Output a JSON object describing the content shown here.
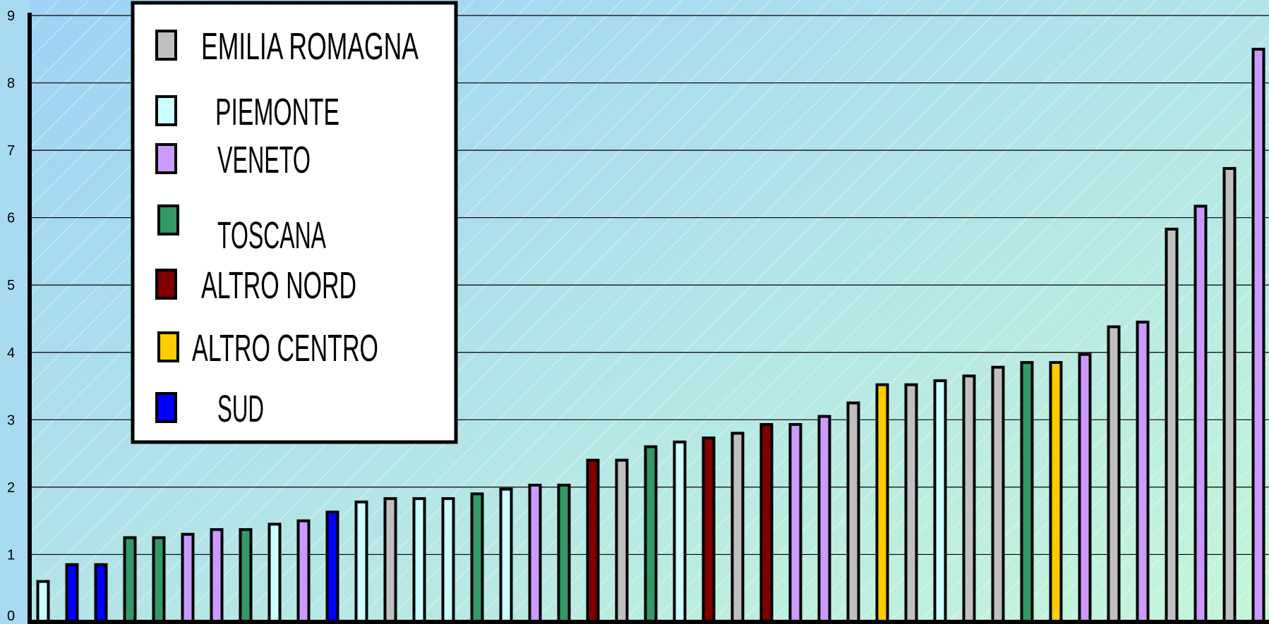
{
  "chart_data": {
    "type": "bar",
    "title": "",
    "xlabel": "",
    "ylabel": "",
    "ylim": [
      0,
      9
    ],
    "yticks": [
      0,
      1,
      2,
      3,
      4,
      5,
      6,
      7,
      8,
      9
    ],
    "grid": true,
    "legend_placement": "top-left",
    "legend": [
      {
        "key": "emilia",
        "label": "EMILIA ROMAGNA",
        "color": "#c0c0c0"
      },
      {
        "key": "piemonte",
        "label": "PIEMONTE",
        "color": "#ccffff"
      },
      {
        "key": "veneto",
        "label": "VENETO",
        "color": "#cc99ff"
      },
      {
        "key": "toscana",
        "label": "TOSCANA",
        "color": "#339966"
      },
      {
        "key": "altro_nord",
        "label": "ALTRO NORD",
        "color": "#800000"
      },
      {
        "key": "altro_centro",
        "label": "ALTRO CENTRO",
        "color": "#ffcc00"
      },
      {
        "key": "sud",
        "label": "SUD",
        "color": "#0000ff"
      }
    ],
    "bars": [
      {
        "group": "piemonte",
        "value": 0.6
      },
      {
        "group": "sud",
        "value": 0.85
      },
      {
        "group": "sud",
        "value": 0.85
      },
      {
        "group": "toscana",
        "value": 1.25
      },
      {
        "group": "toscana",
        "value": 1.25
      },
      {
        "group": "veneto",
        "value": 1.3
      },
      {
        "group": "veneto",
        "value": 1.37
      },
      {
        "group": "toscana",
        "value": 1.37
      },
      {
        "group": "piemonte",
        "value": 1.45
      },
      {
        "group": "veneto",
        "value": 1.5
      },
      {
        "group": "sud",
        "value": 1.63
      },
      {
        "group": "piemonte",
        "value": 1.78
      },
      {
        "group": "emilia",
        "value": 1.83
      },
      {
        "group": "piemonte",
        "value": 1.83
      },
      {
        "group": "piemonte",
        "value": 1.83
      },
      {
        "group": "toscana",
        "value": 1.9
      },
      {
        "group": "piemonte",
        "value": 1.97
      },
      {
        "group": "veneto",
        "value": 2.03
      },
      {
        "group": "toscana",
        "value": 2.03
      },
      {
        "group": "altro_nord",
        "value": 2.4
      },
      {
        "group": "emilia",
        "value": 2.4
      },
      {
        "group": "toscana",
        "value": 2.6
      },
      {
        "group": "piemonte",
        "value": 2.67
      },
      {
        "group": "altro_nord",
        "value": 2.73
      },
      {
        "group": "emilia",
        "value": 2.8
      },
      {
        "group": "altro_nord",
        "value": 2.93
      },
      {
        "group": "veneto",
        "value": 2.93
      },
      {
        "group": "veneto",
        "value": 3.05
      },
      {
        "group": "emilia",
        "value": 3.25
      },
      {
        "group": "altro_centro",
        "value": 3.52
      },
      {
        "group": "emilia",
        "value": 3.52
      },
      {
        "group": "piemonte",
        "value": 3.58
      },
      {
        "group": "emilia",
        "value": 3.65
      },
      {
        "group": "emilia",
        "value": 3.78
      },
      {
        "group": "toscana",
        "value": 3.85
      },
      {
        "group": "altro_centro",
        "value": 3.85
      },
      {
        "group": "veneto",
        "value": 3.97
      },
      {
        "group": "emilia",
        "value": 4.38
      },
      {
        "group": "veneto",
        "value": 4.45
      },
      {
        "group": "emilia",
        "value": 5.83
      },
      {
        "group": "veneto",
        "value": 6.17
      },
      {
        "group": "emilia",
        "value": 6.73
      },
      {
        "group": "veneto",
        "value": 8.5
      }
    ]
  }
}
